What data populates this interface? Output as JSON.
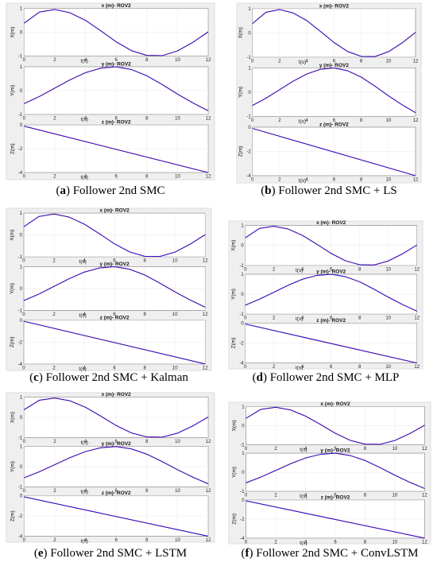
{
  "colors": {
    "reference": "#e8191c",
    "follower": "#1414e6",
    "axes": "#333333",
    "grid": "#e3e3e3"
  },
  "panels": [
    {
      "id": "a",
      "letter": "a",
      "caption": " Follower 2nd SMC"
    },
    {
      "id": "b",
      "letter": "b",
      "caption": " Follower 2nd SMC + LS"
    },
    {
      "id": "c",
      "letter": "c",
      "caption": " Follower 2nd SMC + Kalman"
    },
    {
      "id": "d",
      "letter": "d",
      "caption": " Follower 2nd SMC + MLP"
    },
    {
      "id": "e",
      "letter": "e",
      "caption": " Follower 2nd SMC + LSTM"
    },
    {
      "id": "f",
      "letter": "f",
      "caption": " Follower 2nd SMC + ConvLSTM"
    }
  ],
  "chart_data": [
    {
      "type": "line",
      "title": "x (m)- ROV2",
      "xlabel": "t(s)",
      "ylabel": "X(m)",
      "xlim": [
        0,
        12
      ],
      "ylim": [
        -1,
        1
      ],
      "xticks": [
        0,
        2,
        4,
        6,
        8,
        10,
        12
      ],
      "yticks": [
        -1,
        0,
        1
      ],
      "series": [
        {
          "x": [
            0,
            1,
            2,
            3,
            4,
            5,
            6,
            7,
            8,
            9,
            10,
            11,
            12
          ],
          "values": [
            0.38,
            0.85,
            0.96,
            0.82,
            0.5,
            0.06,
            -0.4,
            -0.77,
            -0.97,
            -0.98,
            -0.78,
            -0.42,
            0.02
          ]
        },
        {
          "x": [
            0,
            1,
            2,
            3,
            4,
            5,
            6,
            7,
            8,
            9,
            10,
            11,
            12
          ],
          "values": [
            0.38,
            0.85,
            0.96,
            0.82,
            0.5,
            0.06,
            -0.4,
            -0.77,
            -0.97,
            -0.98,
            -0.78,
            -0.42,
            0.02
          ]
        }
      ]
    },
    {
      "type": "line",
      "title": "y (m)- ROV2",
      "xlabel": "t(s)",
      "ylabel": "Y(m)",
      "xlim": [
        0,
        12
      ],
      "ylim": [
        -1,
        1
      ],
      "xticks": [
        0,
        2,
        4,
        6,
        8,
        10,
        12
      ],
      "yticks": [
        -1,
        0,
        1
      ],
      "series": [
        {
          "x": [
            0,
            1,
            2,
            3,
            4,
            5,
            6,
            7,
            8,
            9,
            10,
            11,
            12
          ],
          "values": [
            -0.55,
            -0.25,
            0.1,
            0.45,
            0.75,
            0.94,
            1.0,
            0.88,
            0.62,
            0.25,
            -0.15,
            -0.52,
            -0.85
          ]
        },
        {
          "x": [
            0,
            1,
            2,
            3,
            4,
            5,
            6,
            7,
            8,
            9,
            10,
            11,
            12
          ],
          "values": [
            -0.55,
            -0.25,
            0.1,
            0.45,
            0.75,
            0.94,
            1.0,
            0.88,
            0.62,
            0.25,
            -0.15,
            -0.52,
            -0.85
          ]
        }
      ]
    },
    {
      "type": "line",
      "title": "z (m)- ROV2",
      "xlabel": "t(s)",
      "ylabel": "Z(m)",
      "xlim": [
        0,
        12
      ],
      "ylim": [
        -4,
        0
      ],
      "xticks": [
        0,
        2,
        4,
        6,
        8,
        10,
        12
      ],
      "yticks": [
        -4,
        -2,
        0
      ],
      "series": [
        {
          "x": [
            0,
            12
          ],
          "values": [
            -0.1,
            -4.0
          ]
        },
        {
          "x": [
            0,
            12
          ],
          "values": [
            -0.1,
            -4.0
          ]
        }
      ]
    }
  ]
}
